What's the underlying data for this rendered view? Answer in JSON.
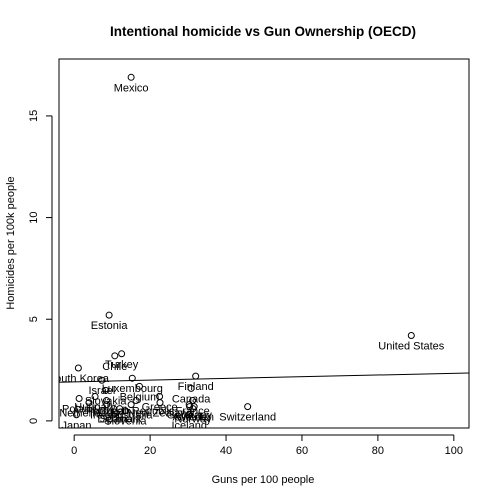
{
  "chart_data": {
    "type": "scatter",
    "title": "Intentional homicide vs Gun Ownership (OECD)",
    "xlabel": "Guns per 100 people",
    "ylabel": "Homicides per 100k people",
    "xlim": [
      -4,
      104
    ],
    "ylim": [
      -0.35,
      17.8
    ],
    "xticks": [
      0,
      20,
      40,
      60,
      80,
      100
    ],
    "yticks": [
      0,
      5,
      10,
      15
    ],
    "grid": false,
    "legend": "none",
    "colors": {
      "points": "#000000",
      "line": "#000000",
      "axis": "#000000"
    },
    "points": [
      {
        "label": "Mexico",
        "x": 15,
        "y": 16.9
      },
      {
        "label": "United States",
        "x": 88.8,
        "y": 4.2
      },
      {
        "label": "Estonia",
        "x": 9.2,
        "y": 5.2
      },
      {
        "label": "Chile",
        "x": 10.7,
        "y": 3.2
      },
      {
        "label": "Turkey",
        "x": 12.5,
        "y": 3.3
      },
      {
        "label": "South Korea",
        "x": 1.1,
        "y": 2.6
      },
      {
        "label": "Finland",
        "x": 32,
        "y": 2.2
      },
      {
        "label": "Luxembourg",
        "x": 15.3,
        "y": 2.1
      },
      {
        "label": "Israel",
        "x": 7.3,
        "y": 2.0
      },
      {
        "label": "Slovakia",
        "x": 8.3,
        "y": 1.5
      },
      {
        "label": "Belgium",
        "x": 17.2,
        "y": 1.7
      },
      {
        "label": "Czech Republic",
        "x": 16.3,
        "y": 1.0
      },
      {
        "label": "Hungary",
        "x": 5.5,
        "y": 1.2
      },
      {
        "label": "Canada",
        "x": 30.8,
        "y": 1.6
      },
      {
        "label": "Greece",
        "x": 22.5,
        "y": 1.2
      },
      {
        "label": "Poland",
        "x": 1.3,
        "y": 1.1
      },
      {
        "label": "Portugal",
        "x": 8.5,
        "y": 1.0
      },
      {
        "label": "France",
        "x": 31.2,
        "y": 1.0
      },
      {
        "label": "Ireland",
        "x": 8.6,
        "y": 0.8
      },
      {
        "label": "Netherlands",
        "x": 3.9,
        "y": 0.9
      },
      {
        "label": "Switzerland",
        "x": 45.7,
        "y": 0.7
      },
      {
        "label": "Austria",
        "x": 30.4,
        "y": 0.7
      },
      {
        "label": "Germany",
        "x": 30.3,
        "y": 0.8
      },
      {
        "label": "Spain",
        "x": 10.4,
        "y": 0.6
      },
      {
        "label": "New Zealand",
        "x": 22.6,
        "y": 0.9
      },
      {
        "label": "Australia",
        "x": 15,
        "y": 0.8
      },
      {
        "label": "Sweden",
        "x": 31.6,
        "y": 0.7
      },
      {
        "label": "Denmark",
        "x": 12,
        "y": 0.6
      },
      {
        "label": "Norway",
        "x": 31.3,
        "y": 0.6
      },
      {
        "label": "Iceland",
        "x": 30.3,
        "y": 0.3
      },
      {
        "label": "Slovenia",
        "x": 13.5,
        "y": 0.5
      },
      {
        "label": "Japan",
        "x": 0.6,
        "y": 0.3
      }
    ],
    "trendline": {
      "intercept": 1.92,
      "slope": 0.0042
    }
  }
}
